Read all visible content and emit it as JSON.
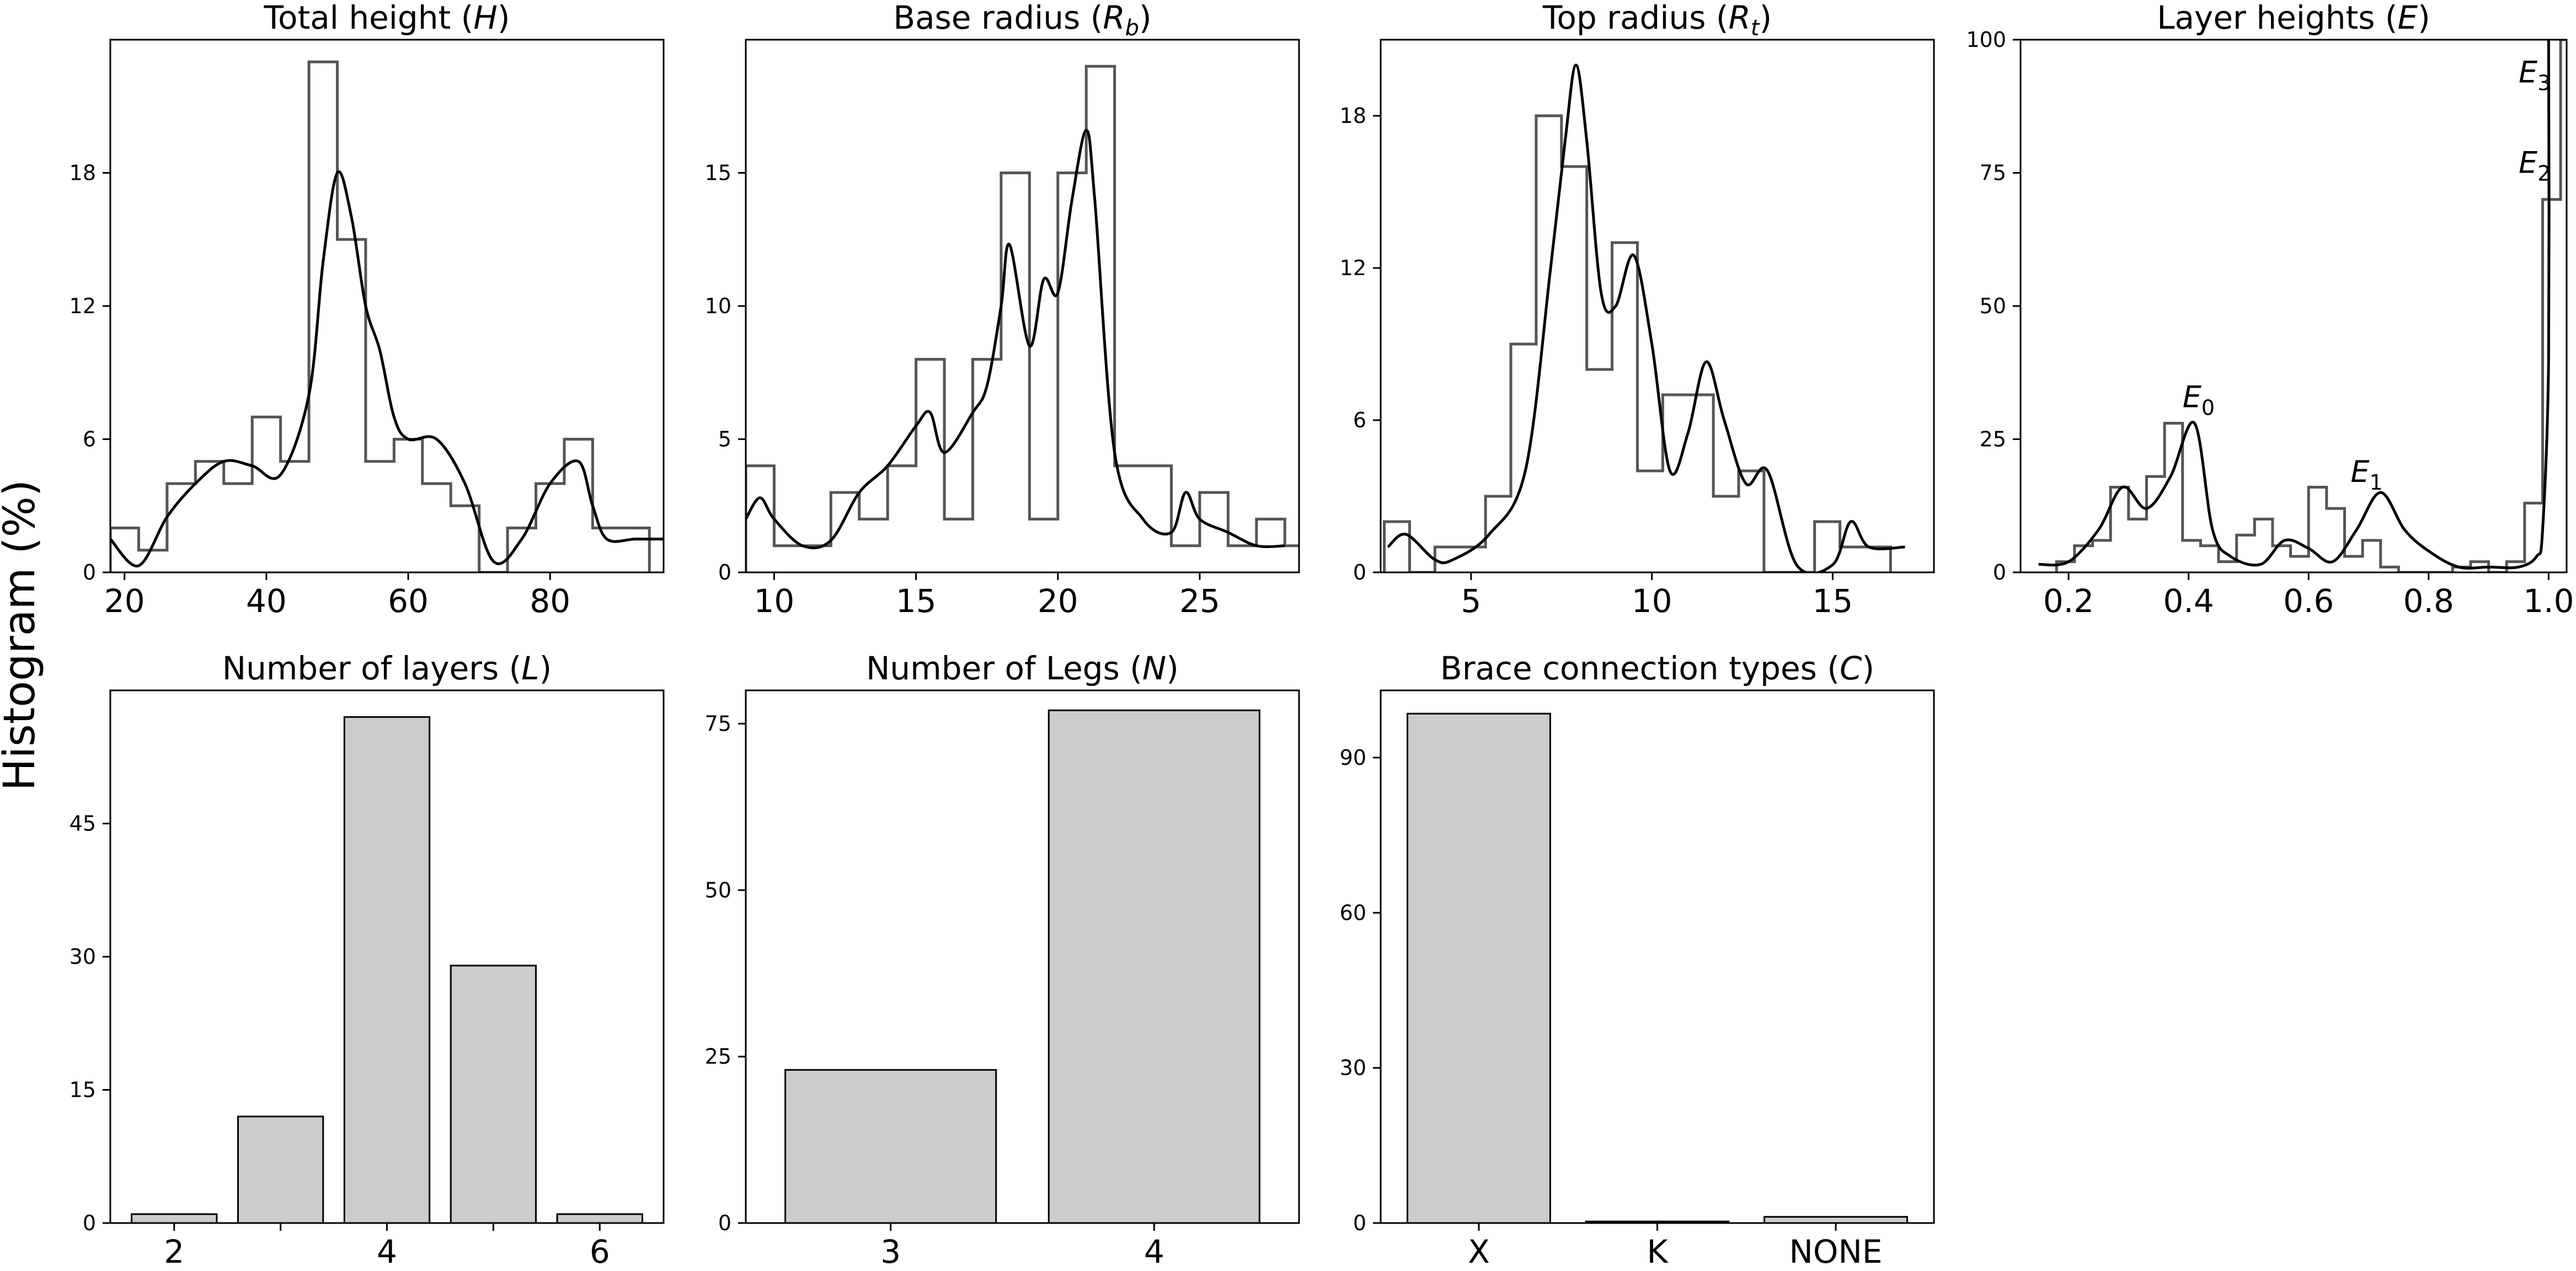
{
  "figure": {
    "ylabel": "Histogram (%)"
  },
  "chart_data": [
    {
      "id": "total-height",
      "type": "bar",
      "title": "Total height (",
      "title_sym": "H",
      "title_sub": "",
      "title_end": ")",
      "xlim": [
        18,
        96
      ],
      "ylim": [
        0,
        24
      ],
      "xticks": [
        20,
        40,
        60,
        80
      ],
      "yticks": [
        0,
        6,
        12,
        18
      ],
      "bins": {
        "start": 18,
        "width": 4,
        "values": [
          2,
          1,
          4,
          5,
          4,
          7,
          5,
          23,
          15,
          5,
          6,
          4,
          3,
          0,
          2,
          4,
          6,
          2,
          2
        ]
      },
      "kde": {
        "x": [
          18,
          22,
          26,
          30,
          34,
          38,
          42,
          46,
          48,
          50,
          52,
          54,
          56,
          58,
          60,
          64,
          68,
          72,
          76,
          80,
          84,
          86,
          88,
          92,
          96
        ],
        "y": [
          1.5,
          0.3,
          2.5,
          4.0,
          5.0,
          4.8,
          4.4,
          8.0,
          14.0,
          18.0,
          16.0,
          12.0,
          10.0,
          7.0,
          6.0,
          6.0,
          4.0,
          0.5,
          1.5,
          4.0,
          5.0,
          3.0,
          1.5,
          1.5,
          1.5
        ]
      }
    },
    {
      "id": "base-radius",
      "type": "bar",
      "title": "Base radius (",
      "title_sym": "R",
      "title_sub": "b",
      "title_end": ")",
      "xlim": [
        9,
        28.5
      ],
      "ylim": [
        0,
        20
      ],
      "xticks": [
        10,
        15,
        20,
        25
      ],
      "yticks": [
        0,
        5,
        10,
        15
      ],
      "bins": {
        "start": 9,
        "width": 1,
        "values": [
          4,
          1,
          1,
          3,
          2,
          4,
          8,
          2,
          8,
          15,
          2,
          15,
          19,
          4,
          4,
          1,
          3,
          1,
          2,
          1
        ]
      },
      "kde": {
        "x": [
          9,
          9.5,
          10,
          11,
          12,
          13,
          14,
          15,
          15.5,
          16,
          17,
          17.5,
          18,
          18.3,
          19,
          19.5,
          20,
          20.5,
          21,
          21.3,
          22,
          23,
          24,
          24.5,
          25,
          26,
          27,
          28
        ],
        "y": [
          2.0,
          2.8,
          2.0,
          1.0,
          1.2,
          3.0,
          4.0,
          5.5,
          6.0,
          4.5,
          6.0,
          7.0,
          10.0,
          12.3,
          8.5,
          11.0,
          10.5,
          14.0,
          16.6,
          14.0,
          4.5,
          2.0,
          1.5,
          3.0,
          2.0,
          1.5,
          1.0,
          1.0
        ]
      }
    },
    {
      "id": "top-radius",
      "type": "bar",
      "title": "Top radius (",
      "title_sym": "R",
      "title_sub": "t",
      "title_end": ")",
      "xlim": [
        2.5,
        17.8
      ],
      "ylim": [
        0,
        21
      ],
      "xticks": [
        5,
        10,
        15
      ],
      "yticks": [
        0,
        6,
        12,
        18
      ],
      "bins": {
        "start": 2.6,
        "width": 0.7,
        "values": [
          2,
          0,
          1,
          1,
          3,
          9,
          18,
          16,
          8,
          13,
          4,
          7,
          7,
          3,
          4,
          0,
          0,
          2,
          1,
          1
        ]
      },
      "kde": {
        "x": [
          2.7,
          3.2,
          4.0,
          4.5,
          5.5,
          6.5,
          7.2,
          7.6,
          7.9,
          8.2,
          8.6,
          9.0,
          9.5,
          10.0,
          10.5,
          11.0,
          11.5,
          12.0,
          12.6,
          13.2,
          14.0,
          15.0,
          15.5,
          16.0,
          17.0
        ],
        "y": [
          1.0,
          1.5,
          0.5,
          0.5,
          1.5,
          4.0,
          12.0,
          17.0,
          20.0,
          17.0,
          11.0,
          10.5,
          12.5,
          9.0,
          4.0,
          5.5,
          8.3,
          6.0,
          3.5,
          4.0,
          0.3,
          0.3,
          2.0,
          1.0,
          1.0
        ]
      }
    },
    {
      "id": "layer-heights",
      "type": "bar",
      "title": "Layer heights (",
      "title_sym": "E",
      "title_sub": "",
      "title_end": ")",
      "xlim": [
        0.12,
        1.03
      ],
      "ylim": [
        0,
        100
      ],
      "xticks": [
        0.2,
        0.4,
        0.6,
        0.8,
        1.0
      ],
      "xtick_labels": [
        "0.2",
        "0.4",
        "0.6",
        "0.8",
        "1.0"
      ],
      "yticks": [
        0,
        25,
        50,
        75,
        100
      ],
      "bins": {
        "start": 0.18,
        "width": 0.03,
        "values": [
          2,
          5,
          6,
          16,
          10,
          18,
          28,
          6,
          5,
          2,
          7,
          10,
          5,
          3,
          16,
          12,
          3,
          6,
          1,
          0,
          0,
          0,
          1,
          2,
          0,
          2,
          13,
          70,
          100
        ]
      },
      "kde": {
        "x": [
          0.15,
          0.2,
          0.25,
          0.29,
          0.33,
          0.37,
          0.41,
          0.44,
          0.47,
          0.52,
          0.56,
          0.6,
          0.64,
          0.68,
          0.72,
          0.76,
          0.8,
          0.85,
          0.9,
          0.95,
          0.98,
          0.99,
          1.0,
          1.0
        ],
        "y": [
          1.5,
          2.0,
          8.0,
          16.0,
          12.0,
          18.0,
          28.0,
          8.0,
          3.0,
          1.5,
          6.0,
          4.5,
          2.0,
          8.0,
          15.0,
          8.0,
          4.0,
          1.0,
          1.0,
          1.0,
          3.0,
          8.0,
          40.0,
          100.0
        ]
      },
      "annotations": [
        {
          "sym": "E",
          "sub": "0",
          "x": 0.39,
          "y": 31
        },
        {
          "sym": "E",
          "sub": "1",
          "x": 0.67,
          "y": 17
        },
        {
          "sym": "E",
          "sub": "2",
          "x": 0.95,
          "y": 75
        },
        {
          "sym": "E",
          "sub": "3",
          "x": 0.95,
          "y": 92
        }
      ]
    },
    {
      "id": "num-layers",
      "type": "bar",
      "title": "Number of layers (",
      "title_sym": "L",
      "title_sub": "",
      "title_end": ")",
      "categories": [
        "2",
        "3",
        "4",
        "5",
        "6"
      ],
      "values": [
        1,
        12,
        57,
        29,
        1
      ],
      "xtick_labels": [
        "2",
        "",
        "4",
        "",
        "6"
      ],
      "ylim": [
        0,
        60
      ],
      "yticks": [
        0,
        15,
        30,
        45
      ]
    },
    {
      "id": "num-legs",
      "type": "bar",
      "title": "Number of Legs (",
      "title_sym": "N",
      "title_sub": "",
      "title_end": ")",
      "categories": [
        "3",
        "4"
      ],
      "values": [
        23,
        77
      ],
      "xtick_labels": [
        "3",
        "4"
      ],
      "ylim": [
        0,
        80
      ],
      "yticks": [
        0,
        25,
        50,
        75
      ]
    },
    {
      "id": "brace-types",
      "type": "bar",
      "title": "Brace connection types (",
      "title_sym": "C",
      "title_sub": "",
      "title_end": ")",
      "categories": [
        "X",
        "K",
        "NONE"
      ],
      "values": [
        98.5,
        0.3,
        1.2
      ],
      "xtick_labels": [
        "X",
        "K",
        "NONE"
      ],
      "ylim": [
        0,
        103
      ],
      "yticks": [
        0,
        30,
        60,
        90
      ]
    }
  ]
}
